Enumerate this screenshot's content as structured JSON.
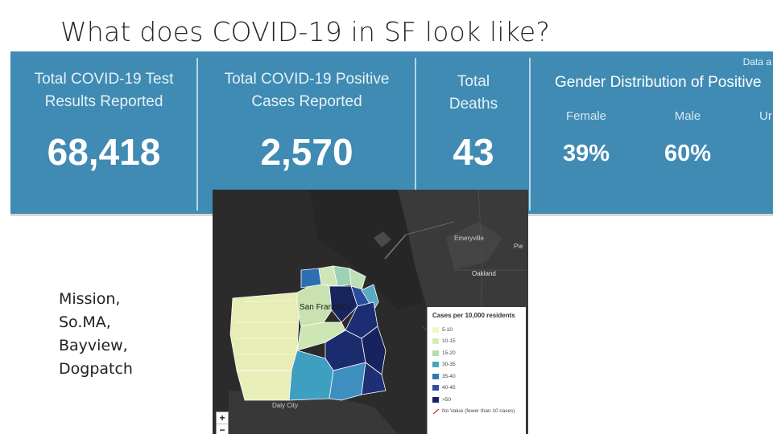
{
  "slide": {
    "title": "What does COVID-19 in SF look like?"
  },
  "dashboard": {
    "data_as_of": "Data a",
    "cards": [
      {
        "label_line1": "Total COVID-19 Test",
        "label_line2": "Results Reported",
        "value": "68,418"
      },
      {
        "label_line1": "Total COVID-19 Positive",
        "label_line2": "Cases Reported",
        "value": "2,570"
      },
      {
        "label_line1": "Total",
        "label_line2": "Deaths",
        "value": "43"
      }
    ],
    "gender": {
      "title": "Gender Distribution of Positive",
      "columns": [
        {
          "label": "Female",
          "value": "39%"
        },
        {
          "label": "Male",
          "value": "60%"
        },
        {
          "label": "Ur",
          "value": ""
        }
      ]
    }
  },
  "side_note": {
    "lines": [
      "Mission,",
      "So.MA,",
      "Bayview,",
      "Dogpatch"
    ]
  },
  "map": {
    "labels": {
      "city": "San Francisco",
      "emeryville": "Emeryville",
      "oakland": "Oakland",
      "daly_city": "Daly City",
      "piedmont": "Pie"
    },
    "zoom_in": "+",
    "zoom_out": "−",
    "legend": {
      "title": "Cases per 10,000 residents",
      "items": [
        {
          "label": "5-10",
          "color": "#f4f7c2"
        },
        {
          "label": "10-15",
          "color": "#dceab2"
        },
        {
          "label": "15-20",
          "color": "#b5dcb5"
        },
        {
          "label": "30-35",
          "color": "#48a7be"
        },
        {
          "label": "35-40",
          "color": "#2d78b7"
        },
        {
          "label": "40-45",
          "color": "#2b4f9d"
        },
        {
          "label": ">50",
          "color": "#17235e"
        },
        {
          "label": "No Value (fewer than 10 cases)",
          "color": "#ffffff"
        }
      ]
    }
  }
}
